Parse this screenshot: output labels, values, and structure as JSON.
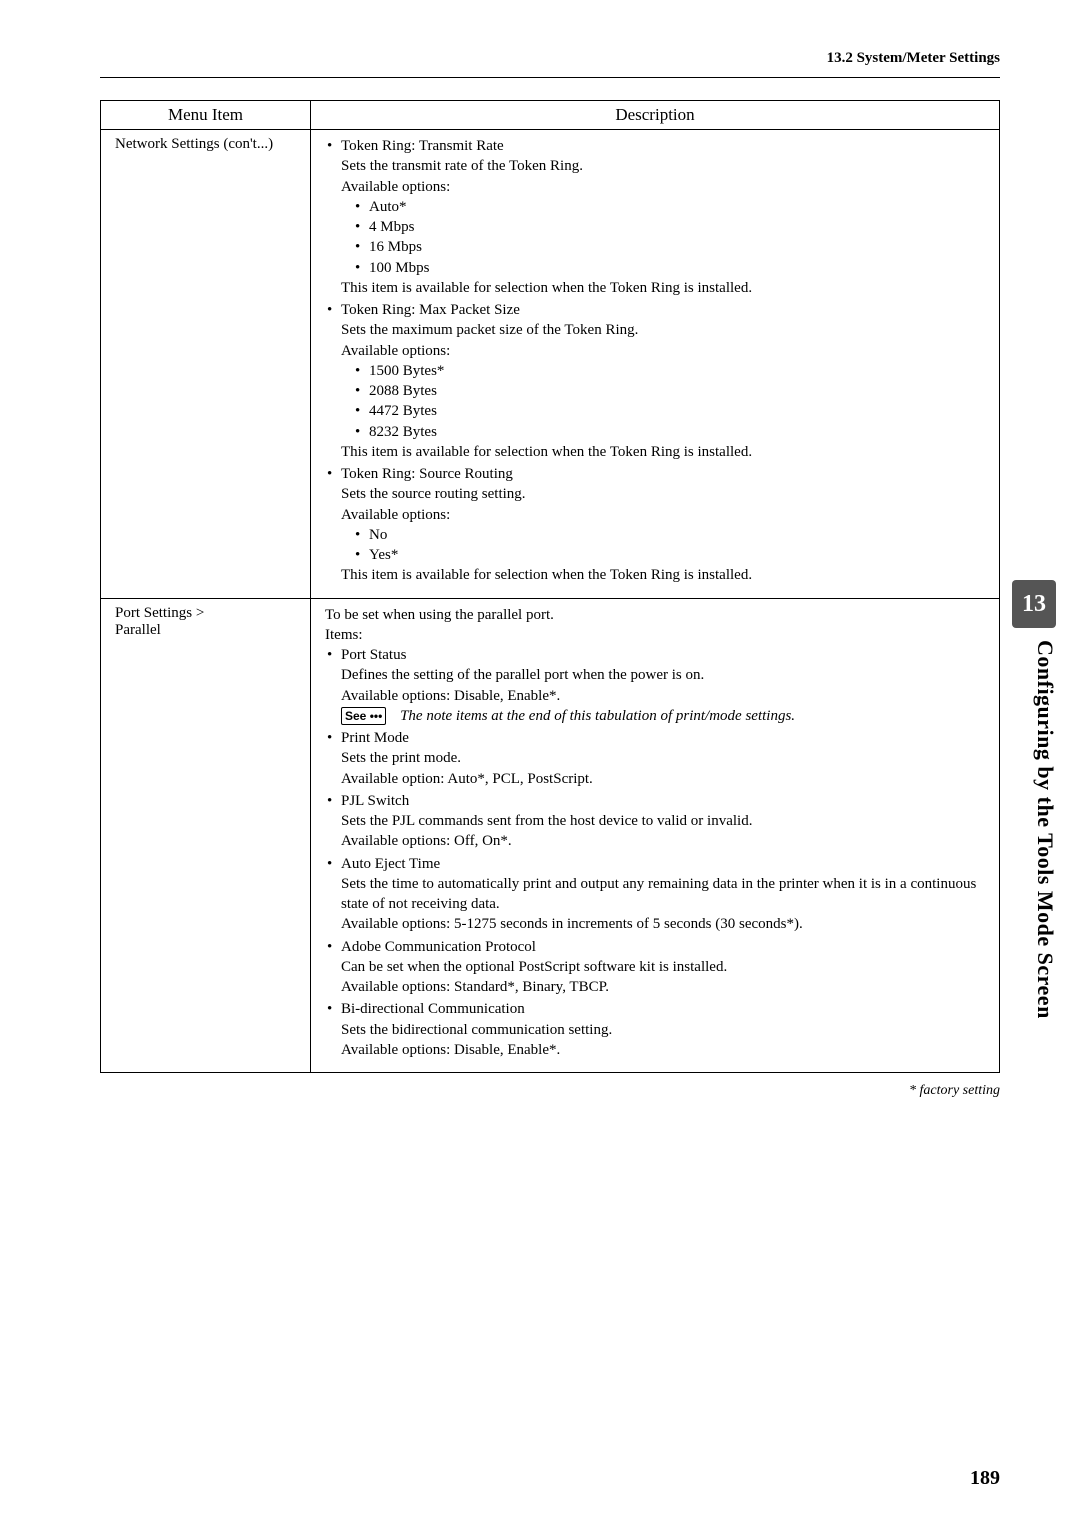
{
  "header": {
    "section_title": "13.2 System/Meter Settings"
  },
  "table": {
    "headers": {
      "menu": "Menu Item",
      "desc": "Description"
    },
    "rows": [
      {
        "menu": "Network Settings (con't...)",
        "items": [
          {
            "title": "Token Ring: Transmit Rate",
            "line1": "Sets the transmit rate of the Token Ring.",
            "avail": "Available options:",
            "opts": [
              "Auto*",
              "4 Mbps",
              "16 Mbps",
              "100 Mbps"
            ],
            "tail": "This item is available for selection when the Token Ring is installed."
          },
          {
            "title": "Token Ring: Max Packet Size",
            "line1": "Sets the maximum packet size of the Token Ring.",
            "avail": "Available options:",
            "opts": [
              "1500 Bytes*",
              "2088 Bytes",
              "4472 Bytes",
              "8232 Bytes"
            ],
            "tail": "This item is available for selection when the Token Ring is installed."
          },
          {
            "title": "Token Ring: Source Routing",
            "line1": "Sets the source routing setting.",
            "avail": "Available options:",
            "opts": [
              "No",
              "Yes*"
            ],
            "tail": "This item is available for selection when the Token Ring is installed."
          }
        ]
      },
      {
        "menu_l1": "Port Settings >",
        "menu_l2": "Parallel",
        "intro": "To be set when using the parallel port.",
        "items_label": "Items:",
        "items": [
          {
            "title": "Port Status",
            "l1": "Defines the setting of the parallel port when the power is on.",
            "l2": "Available options: Disable, Enable*.",
            "see_label": "See",
            "see_dots": "•••",
            "see_text": "The note items at the end of this tabulation of print/mode settings."
          },
          {
            "title": "Print Mode",
            "l1": "Sets the print mode.",
            "l2": "Available option: Auto*, PCL, PostScript."
          },
          {
            "title": "PJL Switch",
            "l1": "Sets the PJL commands sent from the host device to valid or invalid.",
            "l2": "Available options: Off, On*."
          },
          {
            "title": "Auto Eject Time",
            "l1": "Sets the time to automatically print and output any remaining data in the printer when it is in a continuous state of not receiving data.",
            "l2": "Available options: 5-1275 seconds in increments of 5 seconds (30 seconds*)."
          },
          {
            "title": "Adobe Communication Protocol",
            "l1": "Can be set when the optional PostScript software kit is installed.",
            "l2": "Available options:  Standard*, Binary, TBCP."
          },
          {
            "title": "Bi-directional Communication",
            "l1": "Sets the bidirectional communication setting.",
            "l2": "Available options:  Disable, Enable*."
          }
        ]
      }
    ]
  },
  "factory_note": "* factory setting",
  "chapter_tab": "13",
  "side_title": "Configuring by the Tools Mode Screen",
  "page_number": "189",
  "colors": {
    "tab_bg": "#555555",
    "tab_fg": "#ffffff",
    "text": "#000000",
    "page_bg": "#ffffff"
  }
}
